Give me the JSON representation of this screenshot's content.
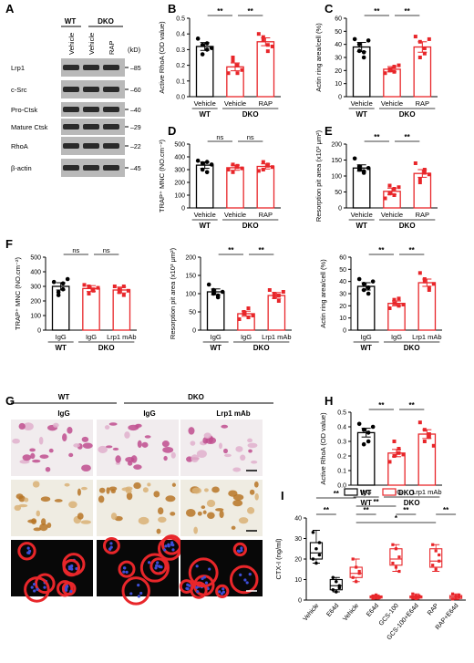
{
  "colors": {
    "wt": "#000000",
    "dko": "#e8262a",
    "blot_bg": "#b9b9b9",
    "band": "#2a2a2a"
  },
  "panel_letters": [
    "A",
    "B",
    "C",
    "D",
    "E",
    "F",
    "G",
    "H",
    "I"
  ],
  "blot": {
    "lanes_group_wt": "WT",
    "lanes_group_dko": "DKO",
    "lanes": [
      "Vehicle",
      "Vehicle",
      "RAP"
    ],
    "kd_label": "(kD)",
    "rows": [
      {
        "name": "Lrp1",
        "kd": "85"
      },
      {
        "name": "c-Src",
        "kd": "60"
      },
      {
        "name": "Pro-Ctsk",
        "kd": "40"
      },
      {
        "name": "Mature Ctsk",
        "kd": "29"
      },
      {
        "name": "RhoA",
        "kd": "22"
      },
      {
        "name": "β-actin",
        "kd": "45"
      }
    ]
  },
  "images": {
    "group_wt": "WT",
    "group_dko": "DKO",
    "cols": [
      "IgG",
      "IgG",
      "Lrp1 mAb"
    ]
  },
  "chart_data": [
    {
      "id": "B",
      "type": "bar",
      "ylabel": "Active RhoA (OD value)",
      "yticks": [
        "0.0",
        "0.1",
        "0.2",
        "0.3",
        "0.4",
        "0.5"
      ],
      "ylim": [
        0,
        0.5
      ],
      "categories": [
        "Vehicle",
        "Vehicle",
        "RAP"
      ],
      "groups": [
        "WT",
        "DKO"
      ],
      "group_span": [
        [
          0,
          0
        ],
        [
          1,
          2
        ]
      ],
      "values": [
        0.32,
        0.19,
        0.35
      ],
      "errors": [
        0.025,
        0.025,
        0.025
      ],
      "points": [
        [
          0.37,
          0.33,
          0.3,
          0.27,
          0.34,
          0.31
        ],
        [
          0.15,
          0.23,
          0.2,
          0.25,
          0.15,
          0.17
        ],
        [
          0.4,
          0.38,
          0.33,
          0.36,
          0.29,
          0.32
        ]
      ],
      "colors": [
        "wt",
        "dko",
        "dko"
      ],
      "sig": [
        {
          "from": 0,
          "to": 1,
          "label": "**"
        },
        {
          "from": 1,
          "to": 2,
          "label": "**"
        }
      ]
    },
    {
      "id": "C",
      "type": "bar",
      "ylabel": "Actin ring area/cell (%)",
      "yticks": [
        "0",
        "10",
        "20",
        "30",
        "40",
        "50",
        "60"
      ],
      "ylim": [
        0,
        60
      ],
      "categories": [
        "Vehicle",
        "Vehicle",
        "RAP"
      ],
      "groups": [
        "WT",
        "DKO"
      ],
      "group_span": [
        [
          0,
          0
        ],
        [
          1,
          2
        ]
      ],
      "values": [
        38,
        21,
        38
      ],
      "errors": [
        3.5,
        2,
        4
      ],
      "points": [
        [
          44,
          35,
          34,
          40,
          30,
          43
        ],
        [
          18,
          20,
          23,
          21,
          19,
          24
        ],
        [
          46,
          30,
          37,
          42,
          33,
          44
        ]
      ],
      "colors": [
        "wt",
        "dko",
        "dko"
      ],
      "sig": [
        {
          "from": 0,
          "to": 1,
          "label": "**"
        },
        {
          "from": 1,
          "to": 2,
          "label": "**"
        }
      ]
    },
    {
      "id": "D",
      "type": "bar",
      "ylabel": "TRAP⁺ MNC (NO.cm⁻²)",
      "yticks": [
        "0",
        "100",
        "200",
        "300",
        "400",
        "500"
      ],
      "ylim": [
        0,
        500
      ],
      "categories": [
        "Vehicle",
        "Vehicle",
        "RAP"
      ],
      "groups": [
        "WT",
        "DKO"
      ],
      "group_span": [
        [
          0,
          0
        ],
        [
          1,
          2
        ]
      ],
      "values": [
        335,
        315,
        325
      ],
      "errors": [
        25,
        20,
        20
      ],
      "points": [
        [
          370,
          300,
          280,
          350,
          360,
          340
        ],
        [
          300,
          340,
          330,
          280,
          320,
          310
        ],
        [
          290,
          360,
          340,
          300,
          330,
          320
        ]
      ],
      "colors": [
        "wt",
        "dko",
        "dko"
      ],
      "sig": [
        {
          "from": 0,
          "to": 1,
          "label": "ns"
        },
        {
          "from": 1,
          "to": 2,
          "label": "ns"
        }
      ]
    },
    {
      "id": "E",
      "type": "bar",
      "ylabel": "Resorption pit area (x10³ μm²)",
      "yticks": [
        "0",
        "50",
        "100",
        "150",
        "200"
      ],
      "ylim": [
        0,
        200
      ],
      "categories": [
        "Vehicle",
        "Vehicle",
        "RAP"
      ],
      "groups": [
        "WT",
        "DKO"
      ],
      "group_span": [
        [
          0,
          0
        ],
        [
          1,
          2
        ]
      ],
      "values": [
        125,
        52,
        108
      ],
      "errors": [
        10,
        10,
        12
      ],
      "points": [
        [
          155,
          120,
          110,
          130,
          115,
          125
        ],
        [
          30,
          45,
          60,
          70,
          40,
          65
        ],
        [
          140,
          90,
          120,
          80,
          110,
          105
        ]
      ],
      "colors": [
        "wt",
        "dko",
        "dko"
      ],
      "sig": [
        {
          "from": 0,
          "to": 1,
          "label": "**"
        },
        {
          "from": 1,
          "to": 2,
          "label": "**"
        }
      ]
    },
    {
      "id": "F1",
      "type": "bar",
      "ylabel": "TRAP⁺ MNC (NO.cm⁻²)",
      "yticks": [
        "0",
        "100",
        "200",
        "300",
        "400",
        "500"
      ],
      "ylim": [
        0,
        500
      ],
      "categories": [
        "IgG",
        "IgG",
        "Lrp1 mAb"
      ],
      "groups": [
        "WT",
        "DKO"
      ],
      "group_span": [
        [
          0,
          0
        ],
        [
          1,
          2
        ]
      ],
      "values": [
        300,
        285,
        275
      ],
      "errors": [
        25,
        20,
        20
      ],
      "points": [
        [
          330,
          260,
          280,
          240,
          320,
          350
        ],
        [
          310,
          250,
          280,
          300,
          270,
          290
        ],
        [
          300,
          260,
          240,
          280,
          300,
          270
        ]
      ],
      "colors": [
        "wt",
        "dko",
        "dko"
      ],
      "sig": [
        {
          "from": 0,
          "to": 1,
          "label": "ns"
        },
        {
          "from": 1,
          "to": 2,
          "label": "ns"
        }
      ]
    },
    {
      "id": "F2",
      "type": "bar",
      "ylabel": "Resorption pit area (x10³ μm²)",
      "yticks": [
        "0",
        "50",
        "100",
        "150",
        "200"
      ],
      "ylim": [
        0,
        200
      ],
      "categories": [
        "IgG",
        "IgG",
        "Lrp1 mAb"
      ],
      "groups": [
        "WT",
        "DKO"
      ],
      "group_span": [
        [
          0,
          0
        ],
        [
          1,
          2
        ]
      ],
      "values": [
        105,
        45,
        95
      ],
      "errors": [
        8,
        7,
        8
      ],
      "points": [
        [
          125,
          100,
          95,
          110,
          90,
          105
        ],
        [
          30,
          45,
          60,
          50,
          35,
          40
        ],
        [
          110,
          90,
          80,
          100,
          95,
          105
        ]
      ],
      "colors": [
        "wt",
        "dko",
        "dko"
      ],
      "sig": [
        {
          "from": 0,
          "to": 1,
          "label": "**"
        },
        {
          "from": 1,
          "to": 2,
          "label": "**"
        }
      ]
    },
    {
      "id": "F3",
      "type": "bar",
      "ylabel": "Actin ring area/cell (%)",
      "yticks": [
        "0",
        "10",
        "20",
        "30",
        "40",
        "50",
        "60"
      ],
      "ylim": [
        0,
        60
      ],
      "categories": [
        "IgG",
        "IgG",
        "Lrp1 mAb"
      ],
      "groups": [
        "WT",
        "DKO"
      ],
      "group_span": [
        [
          0,
          0
        ],
        [
          1,
          2
        ]
      ],
      "values": [
        36,
        22,
        39
      ],
      "errors": [
        3,
        2,
        3
      ],
      "points": [
        [
          42,
          38,
          30,
          33,
          35,
          40
        ],
        [
          18,
          25,
          20,
          22,
          26,
          21
        ],
        [
          47,
          42,
          35,
          40,
          33,
          38
        ]
      ],
      "colors": [
        "wt",
        "dko",
        "dko"
      ],
      "sig": [
        {
          "from": 0,
          "to": 1,
          "label": "**"
        },
        {
          "from": 1,
          "to": 2,
          "label": "**"
        }
      ]
    },
    {
      "id": "H",
      "type": "bar",
      "ylabel": "Active RhoA (OD value)",
      "yticks": [
        "0.0",
        "0.1",
        "0.2",
        "0.3",
        "0.4",
        "0.5"
      ],
      "ylim": [
        0,
        0.5
      ],
      "categories": [
        "IgG",
        "IgG",
        "Lrp1 mAb"
      ],
      "groups": [
        "WT",
        "DKO"
      ],
      "group_span": [
        [
          0,
          0
        ],
        [
          1,
          2
        ]
      ],
      "values": [
        0.36,
        0.22,
        0.35
      ],
      "errors": [
        0.03,
        0.025,
        0.03
      ],
      "points": [
        [
          0.42,
          0.38,
          0.3,
          0.28,
          0.36,
          0.4
        ],
        [
          0.16,
          0.2,
          0.22,
          0.3,
          0.25,
          0.21
        ],
        [
          0.43,
          0.38,
          0.33,
          0.3,
          0.35,
          0.27
        ]
      ],
      "colors": [
        "wt",
        "dko",
        "dko"
      ],
      "sig": [
        {
          "from": 0,
          "to": 1,
          "label": "**"
        },
        {
          "from": 1,
          "to": 2,
          "label": "**"
        }
      ]
    },
    {
      "id": "I",
      "type": "box",
      "ylabel": "CTX-I (ng/ml)",
      "yticks": [
        "0",
        "10",
        "20",
        "30",
        "40"
      ],
      "ylim": [
        0,
        40
      ],
      "legend": [
        "WT",
        "DKO"
      ],
      "categories": [
        "Vehicle",
        "E64d",
        "Vehicle",
        "E64d",
        "GCS-100",
        "GCS-100+E64d",
        "RAP",
        "RAP+E64d"
      ],
      "colors": [
        "wt",
        "wt",
        "dko",
        "dko",
        "dko",
        "dko",
        "dko",
        "dko"
      ],
      "boxes": [
        {
          "min": 18,
          "q1": 20,
          "median": 23,
          "q3": 28,
          "max": 34
        },
        {
          "min": 4,
          "q1": 5,
          "median": 7,
          "q3": 10,
          "max": 11
        },
        {
          "min": 9,
          "q1": 11,
          "median": 13,
          "q3": 16,
          "max": 20
        },
        {
          "min": 0.5,
          "q1": 1,
          "median": 1.5,
          "q3": 2,
          "max": 2.5
        },
        {
          "min": 14,
          "q1": 17,
          "median": 20,
          "q3": 25,
          "max": 27
        },
        {
          "min": 0.5,
          "q1": 1,
          "median": 1.5,
          "q3": 2,
          "max": 3
        },
        {
          "min": 14,
          "q1": 16,
          "median": 19,
          "q3": 25,
          "max": 27
        },
        {
          "min": 0.3,
          "q1": 0.8,
          "median": 1.5,
          "q3": 2.2,
          "max": 3
        }
      ],
      "points": [
        [
          33,
          25,
          22,
          20,
          18,
          28
        ],
        [
          11,
          9,
          7,
          5,
          4,
          6
        ],
        [
          20,
          16,
          13,
          11,
          9,
          14
        ],
        [
          2,
          1,
          1.5,
          0.8,
          2.5,
          1.2
        ],
        [
          27,
          25,
          21,
          18,
          16,
          14
        ],
        [
          3,
          2,
          1.5,
          1,
          0.7,
          2
        ],
        [
          27,
          24,
          19,
          17,
          15,
          22
        ],
        [
          3,
          2,
          1.5,
          0.5,
          1,
          2.5
        ]
      ],
      "sig": [
        {
          "from": 0,
          "to": 1,
          "label": "**",
          "level": 0
        },
        {
          "from": 0,
          "to": 2,
          "label": "**",
          "level": 2
        },
        {
          "from": 2,
          "to": 3,
          "label": "**",
          "level": 0
        },
        {
          "from": 2,
          "to": 4,
          "label": "**",
          "level": 1
        },
        {
          "from": 2,
          "to": 6,
          "label": "*",
          "level": -1
        },
        {
          "from": 4,
          "to": 5,
          "label": "**",
          "level": 0
        },
        {
          "from": 6,
          "to": 7,
          "label": "**",
          "level": 0
        }
      ]
    }
  ]
}
